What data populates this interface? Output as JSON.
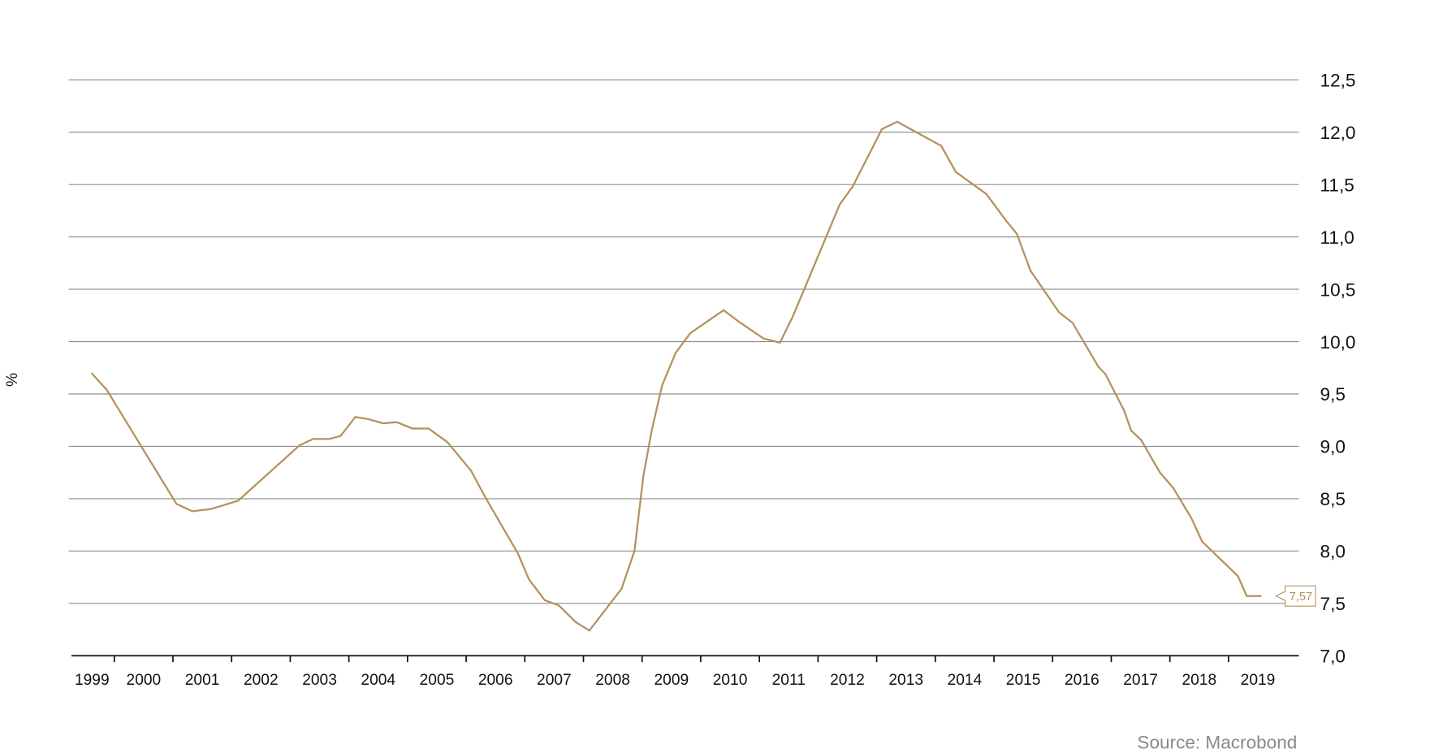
{
  "chart_data": {
    "type": "line",
    "y_label": "%",
    "source": "Source: Macrobond",
    "x": [
      1999.61,
      1999.87,
      2001.06,
      2001.33,
      2001.64,
      2002.11,
      2003.16,
      2003.39,
      2003.67,
      2003.86,
      2004.11,
      2004.33,
      2004.58,
      2004.82,
      2005.08,
      2005.36,
      2005.68,
      2006.08,
      2006.33,
      2006.65,
      2006.88,
      2007.07,
      2007.34,
      2007.58,
      2007.87,
      2008.1,
      2008.65,
      2008.87,
      2009.02,
      2009.16,
      2009.34,
      2009.57,
      2009.82,
      2010.39,
      2010.65,
      2011.07,
      2011.35,
      2011.57,
      2012.37,
      2012.59,
      2013.09,
      2013.35,
      2014.1,
      2014.35,
      2014.87,
      2015.2,
      2015.39,
      2015.62,
      2016.11,
      2016.34,
      2016.78,
      2016.9,
      2017.22,
      2017.34,
      2017.51,
      2017.83,
      2018.06,
      2018.37,
      2018.55,
      2019.16,
      2019.31,
      2019.56
    ],
    "series": [
      {
        "color": "#b4915f",
        "values": [
          9.7,
          9.54,
          8.45,
          8.38,
          8.4,
          8.48,
          9.01,
          9.07,
          9.07,
          9.1,
          9.28,
          9.26,
          9.22,
          9.23,
          9.17,
          9.17,
          9.04,
          8.77,
          8.51,
          8.2,
          7.98,
          7.73,
          7.53,
          7.48,
          7.32,
          7.24,
          7.64,
          8.0,
          8.71,
          9.14,
          9.58,
          9.89,
          10.08,
          10.3,
          10.19,
          10.03,
          9.99,
          10.24,
          11.31,
          11.48,
          12.03,
          12.1,
          11.87,
          11.62,
          11.41,
          11.16,
          11.03,
          10.68,
          10.28,
          10.18,
          9.76,
          9.69,
          9.34,
          9.15,
          9.06,
          8.75,
          8.6,
          8.31,
          8.09,
          7.76,
          7.57,
          7.57
        ],
        "value_labels": [
          null,
          null,
          null,
          null,
          null,
          null,
          null,
          null,
          null,
          null,
          null,
          null,
          null,
          null,
          null,
          null,
          null,
          null,
          null,
          null,
          null,
          null,
          null,
          null,
          null,
          null,
          null,
          null,
          null,
          null,
          null,
          null,
          null,
          null,
          null,
          null,
          null,
          null,
          null,
          null,
          null,
          null,
          null,
          null,
          null,
          null,
          null,
          null,
          null,
          null,
          null,
          null,
          null,
          null,
          null,
          null,
          null,
          null,
          null,
          null,
          null,
          "7,57"
        ]
      }
    ],
    "xlim": [
      1999.27,
      2020.2
    ],
    "xticks": [
      {
        "value": 1999.62,
        "label": "1999"
      },
      {
        "value": 2000.5,
        "label": "2000"
      },
      {
        "value": 2001.5,
        "label": "2001"
      },
      {
        "value": 2002.5,
        "label": "2002"
      },
      {
        "value": 2003.5,
        "label": "2003"
      },
      {
        "value": 2004.5,
        "label": "2004"
      },
      {
        "value": 2005.5,
        "label": "2005"
      },
      {
        "value": 2006.5,
        "label": "2006"
      },
      {
        "value": 2007.5,
        "label": "2007"
      },
      {
        "value": 2008.5,
        "label": "2008"
      },
      {
        "value": 2009.5,
        "label": "2009"
      },
      {
        "value": 2010.5,
        "label": "2010"
      },
      {
        "value": 2011.5,
        "label": "2011"
      },
      {
        "value": 2012.5,
        "label": "2012"
      },
      {
        "value": 2013.5,
        "label": "2013"
      },
      {
        "value": 2014.5,
        "label": "2014"
      },
      {
        "value": 2015.5,
        "label": "2015"
      },
      {
        "value": 2016.5,
        "label": "2016"
      },
      {
        "value": 2017.5,
        "label": "2017"
      },
      {
        "value": 2018.5,
        "label": "2018"
      },
      {
        "value": 2019.5,
        "label": "2019"
      }
    ],
    "ylim": [
      7.0,
      12.5
    ],
    "yticks": [
      {
        "value": 7.0,
        "label": "7,0"
      },
      {
        "value": 7.5,
        "label": "7,5"
      },
      {
        "value": 8.0,
        "label": "8,0"
      },
      {
        "value": 8.5,
        "label": "8,5"
      },
      {
        "value": 9.0,
        "label": "9,0"
      },
      {
        "value": 9.5,
        "label": "9,5"
      },
      {
        "value": 10.0,
        "label": "10,0"
      },
      {
        "value": 10.5,
        "label": "10,5"
      },
      {
        "value": 11.0,
        "label": "11,0"
      },
      {
        "value": 11.5,
        "label": "11,5"
      },
      {
        "value": 12.0,
        "label": "12,0"
      },
      {
        "value": 12.5,
        "label": "12,5"
      }
    ],
    "grid": true
  }
}
